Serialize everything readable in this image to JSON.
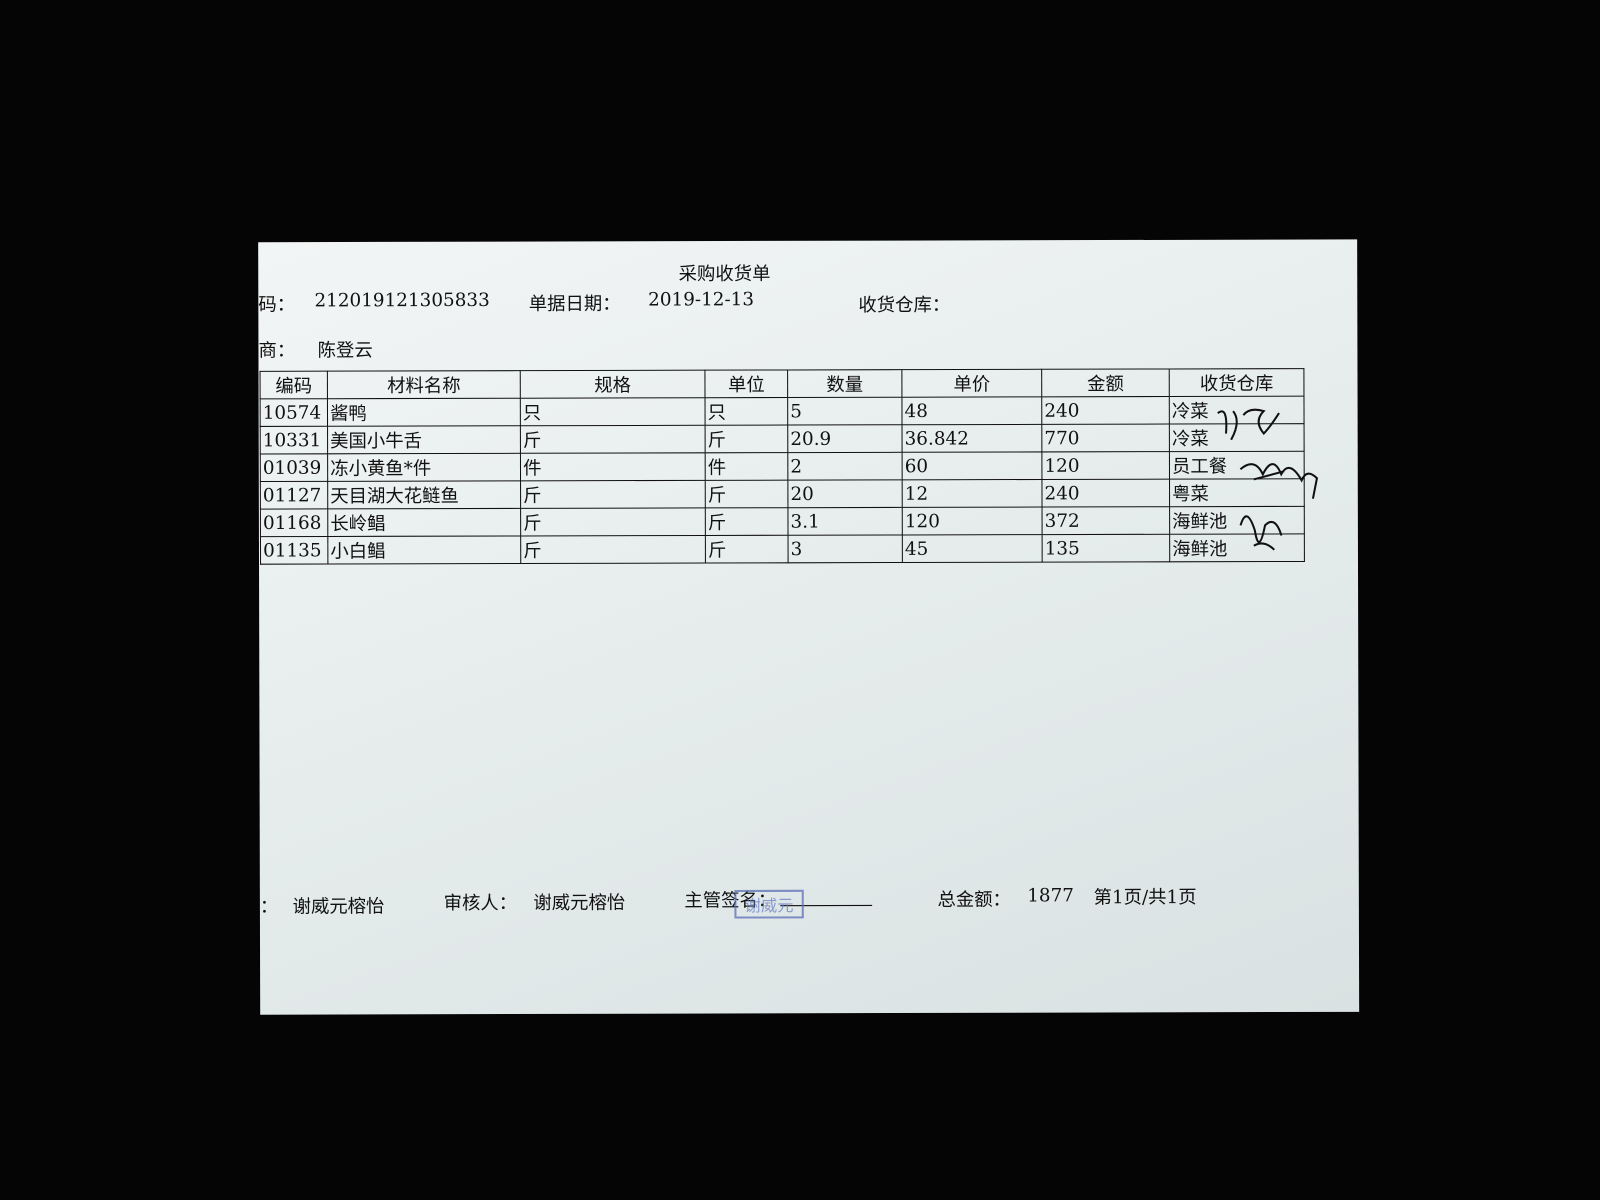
{
  "header": {
    "title": "采购收货单",
    "fields": [
      {
        "label": "码：",
        "value": "212019121305833"
      },
      {
        "label": "单据日期：",
        "value": "2019-12-13"
      },
      {
        "label": "收货仓库："
      }
    ],
    "supplier": {
      "label": "商：",
      "value": "陈登云"
    }
  },
  "table": {
    "columns": [
      "编码",
      "材料名称",
      "规格",
      "单位",
      "数量",
      "单价",
      "金额",
      "收货仓库"
    ],
    "rows": [
      [
        "10574",
        "酱鸭",
        "只",
        "只",
        5,
        48,
        240,
        "冷菜"
      ],
      [
        "10331",
        "美国小牛舌",
        "斤",
        "斤",
        20.9,
        36.842,
        770,
        "冷菜"
      ],
      [
        "01039",
        "冻小黄鱼*件",
        "件",
        "件",
        2,
        60,
        120,
        "员工餐"
      ],
      [
        "01127",
        "天目湖大花鲢鱼",
        "斤",
        "斤",
        20,
        12,
        240,
        "粤菜"
      ],
      [
        "01168",
        "长岭鲳",
        "斤",
        "斤",
        3.1,
        120,
        372,
        "海鲜池"
      ],
      [
        "01135",
        "小白鲳",
        "斤",
        "斤",
        3,
        45,
        135,
        "海鲜池"
      ]
    ]
  },
  "footer": {
    "creator": {
      "label": "：",
      "value": "谢威元榕怡"
    },
    "reviewer": {
      "label": "审核人：",
      "value": "谢威元榕怡"
    },
    "supervisor": {
      "label": "主管签名：",
      "stamp": "谢威元"
    },
    "total": {
      "label": "总金额：",
      "value": 1877
    },
    "page": "第1页/共1页"
  }
}
